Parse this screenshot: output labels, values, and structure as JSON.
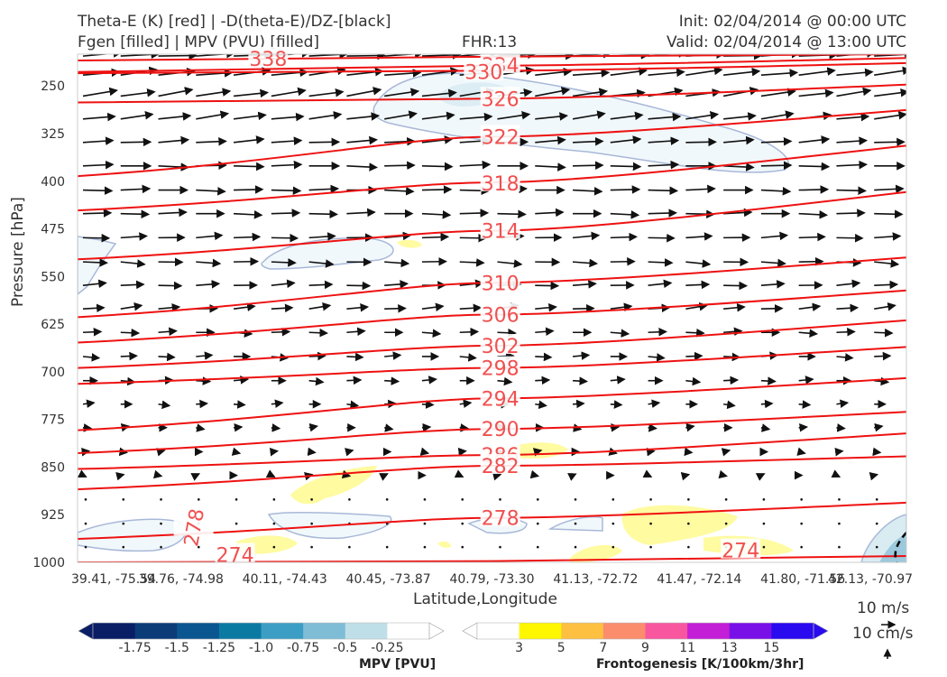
{
  "header": {
    "line1_left": "Theta-E (K) [red] | -D(theta-E)/DZ-[black]",
    "line2_left": "Fgen [filled] | MPV (PVU) [filled]",
    "fhr": "FHR:13",
    "init": "Init: 02/04/2014 @ 00:00 UTC",
    "valid": "Valid: 02/04/2014 @ 13:00 UTC"
  },
  "reference_vectors": {
    "horizontal": "10 m/s",
    "vertical": "10 cm/s"
  },
  "colorbars": {
    "mpv": {
      "title": "MPV [PVU]",
      "ticks": [
        "-1.75",
        "-1.5",
        "-1.25",
        "-1.0",
        "-0.75",
        "-0.5",
        "-0.25"
      ],
      "colors": [
        "#0a1e66",
        "#0b3c78",
        "#0a5690",
        "#0b7aa3",
        "#3c9ec4",
        "#7fbcd6",
        "#bfdfe8",
        "#ffffff"
      ]
    },
    "fgen": {
      "title": "Frontogenesis [K/100km/3hr]",
      "ticks": [
        "3",
        "5",
        "7",
        "9",
        "11",
        "13",
        "15"
      ],
      "colors": [
        "#ffffff",
        "#fff700",
        "#fdc040",
        "#fb8c6c",
        "#f8569f",
        "#c21fd6",
        "#7a10e8",
        "#2a0aef"
      ]
    }
  },
  "chart_data": {
    "type": "cross-section",
    "xlabel": "Latitude,Longitude",
    "ylabel": "Pressure [hPa]",
    "x_ticks": [
      "39.41, -75.54",
      "39.76, -74.98",
      "40.11, -74.43",
      "40.45, -73.87",
      "40.79, -73.30",
      "41.13, -72.72",
      "41.47, -72.14",
      "41.80, -71.56",
      "42.13, -70.97"
    ],
    "y_ticks": [
      250,
      325,
      400,
      475,
      550,
      625,
      700,
      775,
      850,
      925,
      1000
    ],
    "ylim": [
      1000,
      200
    ],
    "y_scale": "linear, inverted",
    "theta_e_contours": [
      {
        "value": 338,
        "p": [
          210,
          204,
          200
        ]
      },
      {
        "value": 334,
        "p": [
          228,
          218,
          206
        ]
      },
      {
        "value": 330,
        "p": [
          230,
          226,
          214
        ]
      },
      {
        "value": 326,
        "p": [
          276,
          270,
          248
        ]
      },
      {
        "value": 322,
        "p": [
          392,
          330,
          288
        ]
      },
      {
        "value": 318,
        "p": [
          446,
          402,
          344
        ]
      },
      {
        "value": 314,
        "p": [
          523,
          478,
          417
        ]
      },
      {
        "value": 310,
        "p": [
          614,
          560,
          520
        ]
      },
      {
        "value": 306,
        "p": [
          654,
          610,
          572
        ]
      },
      {
        "value": 302,
        "p": [
          694,
          659,
          619
        ]
      },
      {
        "value": 298,
        "p": [
          719,
          694,
          661
        ]
      },
      {
        "value": 294,
        "p": [
          792,
          742,
          710
        ]
      },
      {
        "value": 290,
        "p": [
          828,
          790,
          763
        ]
      },
      {
        "value": 286,
        "p": [
          853,
          831,
          797
        ]
      },
      {
        "value": 282,
        "p": [
          885,
          848,
          833
        ]
      },
      {
        "value": 278,
        "p": [
          963,
          930,
          906
        ]
      },
      {
        "value": 274,
        "p": [
          1000,
          998,
          990
        ]
      }
    ],
    "theta_e_labels": [
      {
        "text": "338",
        "x": 0.23,
        "p": 207
      },
      {
        "text": "334",
        "x": 0.51,
        "p": 217
      },
      {
        "text": "330",
        "x": 0.49,
        "p": 228
      },
      {
        "text": "326",
        "x": 0.51,
        "p": 270
      },
      {
        "text": "322",
        "x": 0.51,
        "p": 330
      },
      {
        "text": "318",
        "x": 0.51,
        "p": 403
      },
      {
        "text": "314",
        "x": 0.51,
        "p": 478
      },
      {
        "text": "310",
        "x": 0.51,
        "p": 560
      },
      {
        "text": "306",
        "x": 0.51,
        "p": 610
      },
      {
        "text": "302",
        "x": 0.51,
        "p": 659
      },
      {
        "text": "298",
        "x": 0.51,
        "p": 694
      },
      {
        "text": "294",
        "x": 0.51,
        "p": 742
      },
      {
        "text": "290",
        "x": 0.51,
        "p": 790
      },
      {
        "text": "286",
        "x": 0.51,
        "p": 831
      },
      {
        "text": "282",
        "x": 0.51,
        "p": 848
      },
      {
        "text": "278",
        "x": 0.51,
        "p": 930
      },
      {
        "text": "278",
        "x": 0.14,
        "p": 945
      },
      {
        "text": "274",
        "x": 0.19,
        "p": 988
      },
      {
        "text": "274",
        "x": 0.8,
        "p": 981
      }
    ],
    "vector_rows": [
      {
        "p": 203,
        "u": 38,
        "v": 2
      },
      {
        "p": 233,
        "u": 36,
        "v": 4
      },
      {
        "p": 266,
        "u": 34,
        "v": 5
      },
      {
        "p": 302,
        "u": 32,
        "v": 4
      },
      {
        "p": 339,
        "u": 30,
        "v": 2
      },
      {
        "p": 376,
        "u": 30,
        "v": 0
      },
      {
        "p": 414,
        "u": 29,
        "v": 0
      },
      {
        "p": 451,
        "u": 28,
        "v": 0
      },
      {
        "p": 489,
        "u": 26,
        "v": 1
      },
      {
        "p": 527,
        "u": 24,
        "v": -1
      },
      {
        "p": 564,
        "u": 23,
        "v": 1
      },
      {
        "p": 601,
        "u": 21,
        "v": 2
      },
      {
        "p": 638,
        "u": 18,
        "v": 0
      },
      {
        "p": 676,
        "u": 16,
        "v": 0
      },
      {
        "p": 714,
        "u": 14,
        "v": 0
      },
      {
        "p": 751,
        "u": 11,
        "v": 0
      },
      {
        "p": 788,
        "u": 8,
        "v": 0
      },
      {
        "p": 826,
        "u": 6,
        "v": 0
      },
      {
        "p": 863,
        "u": 3,
        "v": 0
      },
      {
        "p": 901,
        "u": 1,
        "v": 0
      },
      {
        "p": 939,
        "u": 1,
        "v": 0
      },
      {
        "p": 976,
        "u": 2,
        "v": 0
      }
    ]
  }
}
